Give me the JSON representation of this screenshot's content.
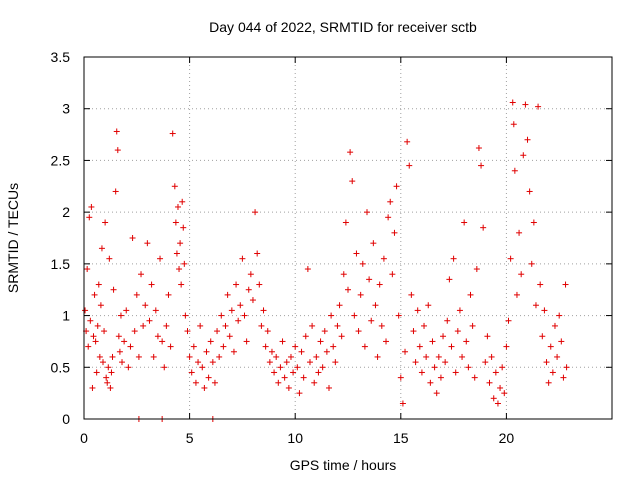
{
  "chart_data": {
    "type": "scatter",
    "title": "Day 044 of 2022, SRMTID for receiver sctb",
    "xlabel": "GPS time / hours",
    "ylabel": "SRMTID / TECUs",
    "xlim": [
      0,
      25
    ],
    "ylim": [
      0,
      3.5
    ],
    "xticks": [
      0,
      5,
      10,
      15,
      20
    ],
    "yticks": [
      0,
      0.5,
      1,
      1.5,
      2,
      2.5,
      3,
      3.5
    ],
    "xtick_labels": [
      "0",
      "5",
      "10",
      "15",
      "20"
    ],
    "ytick_labels": [
      "0",
      "0.5",
      "1",
      "1.5",
      "2",
      "2.5",
      "3",
      "3.5"
    ],
    "grid": true,
    "marker": "+",
    "color": "#e00000",
    "series": [
      {
        "name": "SRMTID",
        "points": [
          [
            0.05,
            1.05
          ],
          [
            0.1,
            0.85
          ],
          [
            0.15,
            1.45
          ],
          [
            0.2,
            0.7
          ],
          [
            0.25,
            1.95
          ],
          [
            0.3,
            0.95
          ],
          [
            0.35,
            2.05
          ],
          [
            0.4,
            0.3
          ],
          [
            0.45,
            0.8
          ],
          [
            0.5,
            1.2
          ],
          [
            0.55,
            0.75
          ],
          [
            0.6,
            0.45
          ],
          [
            0.65,
            0.9
          ],
          [
            0.7,
            1.3
          ],
          [
            0.75,
            0.6
          ],
          [
            0.8,
            1.1
          ],
          [
            0.85,
            1.65
          ],
          [
            0.9,
            0.55
          ],
          [
            0.95,
            0.85
          ],
          [
            1.0,
            1.9
          ],
          [
            1.05,
            0.4
          ],
          [
            1.1,
            0.35
          ],
          [
            1.15,
            0.5
          ],
          [
            1.2,
            1.55
          ],
          [
            1.25,
            0.3
          ],
          [
            1.3,
            0.45
          ],
          [
            1.35,
            0.6
          ],
          [
            1.4,
            1.25
          ],
          [
            1.5,
            2.2
          ],
          [
            1.55,
            2.78
          ],
          [
            1.6,
            2.6
          ],
          [
            1.65,
            0.8
          ],
          [
            1.7,
            0.65
          ],
          [
            1.75,
            1.0
          ],
          [
            1.8,
            0.55
          ],
          [
            1.9,
            0.75
          ],
          [
            2.0,
            1.05
          ],
          [
            2.1,
            0.5
          ],
          [
            2.2,
            0.7
          ],
          [
            2.3,
            1.75
          ],
          [
            2.4,
            0.85
          ],
          [
            2.5,
            1.2
          ],
          [
            2.6,
            0.6
          ],
          [
            2.7,
            1.4
          ],
          [
            2.8,
            0.9
          ],
          [
            2.9,
            1.1
          ],
          [
            3.0,
            1.7
          ],
          [
            3.1,
            0.95
          ],
          [
            3.2,
            1.3
          ],
          [
            3.3,
            0.6
          ],
          [
            3.4,
            1.05
          ],
          [
            3.5,
            0.8
          ],
          [
            3.6,
            1.55
          ],
          [
            3.7,
            0.75
          ],
          [
            3.8,
            0.5
          ],
          [
            3.9,
            0.9
          ],
          [
            4.0,
            1.2
          ],
          [
            4.1,
            0.7
          ],
          [
            4.2,
            2.76
          ],
          [
            4.3,
            2.25
          ],
          [
            4.35,
            1.9
          ],
          [
            4.4,
            1.6
          ],
          [
            4.45,
            2.05
          ],
          [
            4.5,
            1.45
          ],
          [
            4.55,
            1.7
          ],
          [
            4.6,
            1.3
          ],
          [
            4.65,
            2.1
          ],
          [
            4.7,
            1.85
          ],
          [
            4.75,
            1.5
          ],
          [
            4.8,
            1.0
          ],
          [
            4.9,
            0.85
          ],
          [
            5.0,
            0.6
          ],
          [
            5.1,
            0.45
          ],
          [
            5.2,
            0.7
          ],
          [
            5.3,
            0.35
          ],
          [
            5.4,
            0.55
          ],
          [
            5.5,
            0.9
          ],
          [
            5.6,
            0.5
          ],
          [
            5.7,
            0.3
          ],
          [
            5.8,
            0.65
          ],
          [
            5.9,
            0.4
          ],
          [
            6.0,
            0.75
          ],
          [
            6.1,
            0.55
          ],
          [
            6.2,
            0.35
          ],
          [
            6.3,
            0.85
          ],
          [
            6.4,
            0.6
          ],
          [
            6.5,
            1.0
          ],
          [
            6.6,
            0.7
          ],
          [
            6.7,
            0.9
          ],
          [
            6.8,
            1.2
          ],
          [
            6.9,
            0.8
          ],
          [
            7.0,
            1.05
          ],
          [
            7.1,
            0.65
          ],
          [
            7.2,
            1.3
          ],
          [
            7.3,
            0.95
          ],
          [
            7.4,
            1.1
          ],
          [
            7.5,
            1.55
          ],
          [
            7.6,
            1.0
          ],
          [
            7.7,
            0.75
          ],
          [
            7.8,
            1.25
          ],
          [
            7.9,
            1.4
          ],
          [
            8.0,
            1.15
          ],
          [
            8.1,
            2.0
          ],
          [
            8.2,
            1.6
          ],
          [
            8.3,
            1.3
          ],
          [
            8.4,
            0.9
          ],
          [
            8.5,
            1.05
          ],
          [
            8.6,
            0.7
          ],
          [
            8.7,
            0.85
          ],
          [
            8.8,
            0.55
          ],
          [
            8.9,
            0.65
          ],
          [
            9.0,
            0.45
          ],
          [
            9.1,
            0.6
          ],
          [
            9.2,
            0.35
          ],
          [
            9.3,
            0.5
          ],
          [
            9.4,
            0.75
          ],
          [
            9.5,
            0.4
          ],
          [
            9.6,
            0.55
          ],
          [
            9.7,
            0.3
          ],
          [
            9.8,
            0.6
          ],
          [
            9.9,
            0.45
          ],
          [
            10.0,
            0.7
          ],
          [
            10.1,
            0.5
          ],
          [
            10.2,
            0.25
          ],
          [
            10.3,
            0.65
          ],
          [
            10.4,
            0.4
          ],
          [
            10.5,
            0.8
          ],
          [
            10.6,
            1.45
          ],
          [
            10.7,
            0.55
          ],
          [
            10.8,
            0.9
          ],
          [
            10.9,
            0.35
          ],
          [
            11.0,
            0.6
          ],
          [
            11.1,
            0.45
          ],
          [
            11.2,
            0.75
          ],
          [
            11.3,
            0.5
          ],
          [
            11.4,
            0.85
          ],
          [
            11.5,
            0.65
          ],
          [
            11.6,
            0.3
          ],
          [
            11.7,
            1.0
          ],
          [
            11.8,
            0.7
          ],
          [
            11.9,
            0.55
          ],
          [
            12.0,
            0.9
          ],
          [
            12.1,
            1.1
          ],
          [
            12.2,
            0.8
          ],
          [
            12.3,
            1.4
          ],
          [
            12.4,
            1.9
          ],
          [
            12.5,
            1.25
          ],
          [
            12.6,
            2.58
          ],
          [
            12.7,
            2.3
          ],
          [
            12.8,
            1.0
          ],
          [
            12.9,
            1.6
          ],
          [
            13.0,
            0.85
          ],
          [
            13.1,
            1.2
          ],
          [
            13.2,
            1.5
          ],
          [
            13.3,
            0.7
          ],
          [
            13.4,
            2.0
          ],
          [
            13.5,
            1.35
          ],
          [
            13.6,
            0.95
          ],
          [
            13.7,
            1.7
          ],
          [
            13.8,
            1.1
          ],
          [
            13.9,
            0.6
          ],
          [
            14.0,
            1.3
          ],
          [
            14.1,
            0.9
          ],
          [
            14.2,
            1.55
          ],
          [
            14.3,
            0.75
          ],
          [
            14.4,
            1.95
          ],
          [
            14.5,
            2.1
          ],
          [
            14.6,
            1.4
          ],
          [
            14.7,
            1.8
          ],
          [
            14.8,
            2.25
          ],
          [
            14.9,
            1.0
          ],
          [
            15.0,
            0.4
          ],
          [
            15.1,
            0.15
          ],
          [
            15.2,
            0.65
          ],
          [
            15.3,
            2.68
          ],
          [
            15.4,
            2.45
          ],
          [
            15.5,
            1.2
          ],
          [
            15.6,
            0.85
          ],
          [
            15.7,
            0.55
          ],
          [
            15.8,
            1.05
          ],
          [
            15.9,
            0.7
          ],
          [
            16.0,
            0.45
          ],
          [
            16.1,
            0.9
          ],
          [
            16.2,
            0.6
          ],
          [
            16.3,
            1.1
          ],
          [
            16.4,
            0.35
          ],
          [
            16.5,
            0.75
          ],
          [
            16.6,
            0.5
          ],
          [
            16.7,
            0.25
          ],
          [
            16.8,
            0.6
          ],
          [
            16.9,
            0.4
          ],
          [
            17.0,
            0.8
          ],
          [
            17.1,
            0.55
          ],
          [
            17.2,
            0.95
          ],
          [
            17.3,
            1.35
          ],
          [
            17.4,
            0.7
          ],
          [
            17.5,
            1.55
          ],
          [
            17.6,
            0.45
          ],
          [
            17.7,
            0.85
          ],
          [
            17.8,
            1.05
          ],
          [
            17.9,
            0.6
          ],
          [
            18.0,
            1.9
          ],
          [
            18.1,
            0.75
          ],
          [
            18.2,
            0.5
          ],
          [
            18.3,
            1.2
          ],
          [
            18.4,
            0.9
          ],
          [
            18.5,
            0.4
          ],
          [
            18.6,
            1.45
          ],
          [
            18.7,
            2.62
          ],
          [
            18.8,
            2.45
          ],
          [
            18.9,
            1.85
          ],
          [
            19.0,
            0.55
          ],
          [
            19.1,
            0.8
          ],
          [
            19.2,
            0.35
          ],
          [
            19.3,
            0.6
          ],
          [
            19.4,
            0.2
          ],
          [
            19.5,
            0.45
          ],
          [
            19.6,
            0.15
          ],
          [
            19.7,
            0.3
          ],
          [
            19.8,
            0.5
          ],
          [
            19.9,
            0.25
          ],
          [
            20.0,
            0.7
          ],
          [
            20.1,
            0.95
          ],
          [
            20.2,
            1.55
          ],
          [
            20.3,
            3.06
          ],
          [
            20.35,
            2.85
          ],
          [
            20.4,
            2.4
          ],
          [
            20.5,
            1.2
          ],
          [
            20.6,
            1.8
          ],
          [
            20.7,
            1.4
          ],
          [
            20.8,
            2.55
          ],
          [
            20.9,
            3.04
          ],
          [
            21.0,
            2.7
          ],
          [
            21.1,
            2.2
          ],
          [
            21.2,
            1.5
          ],
          [
            21.3,
            1.9
          ],
          [
            21.4,
            1.1
          ],
          [
            21.5,
            3.02
          ],
          [
            21.6,
            1.3
          ],
          [
            21.7,
            0.8
          ],
          [
            21.8,
            1.05
          ],
          [
            21.9,
            0.55
          ],
          [
            22.0,
            0.35
          ],
          [
            22.1,
            0.7
          ],
          [
            22.2,
            0.45
          ],
          [
            22.3,
            0.9
          ],
          [
            22.4,
            0.6
          ],
          [
            22.5,
            1.0
          ],
          [
            22.6,
            0.75
          ],
          [
            22.7,
            0.4
          ],
          [
            22.8,
            1.3
          ],
          [
            22.85,
            0.5
          ],
          [
            2.6,
            0.0
          ],
          [
            3.7,
            0.0
          ],
          [
            6.1,
            0.0
          ]
        ]
      }
    ]
  }
}
